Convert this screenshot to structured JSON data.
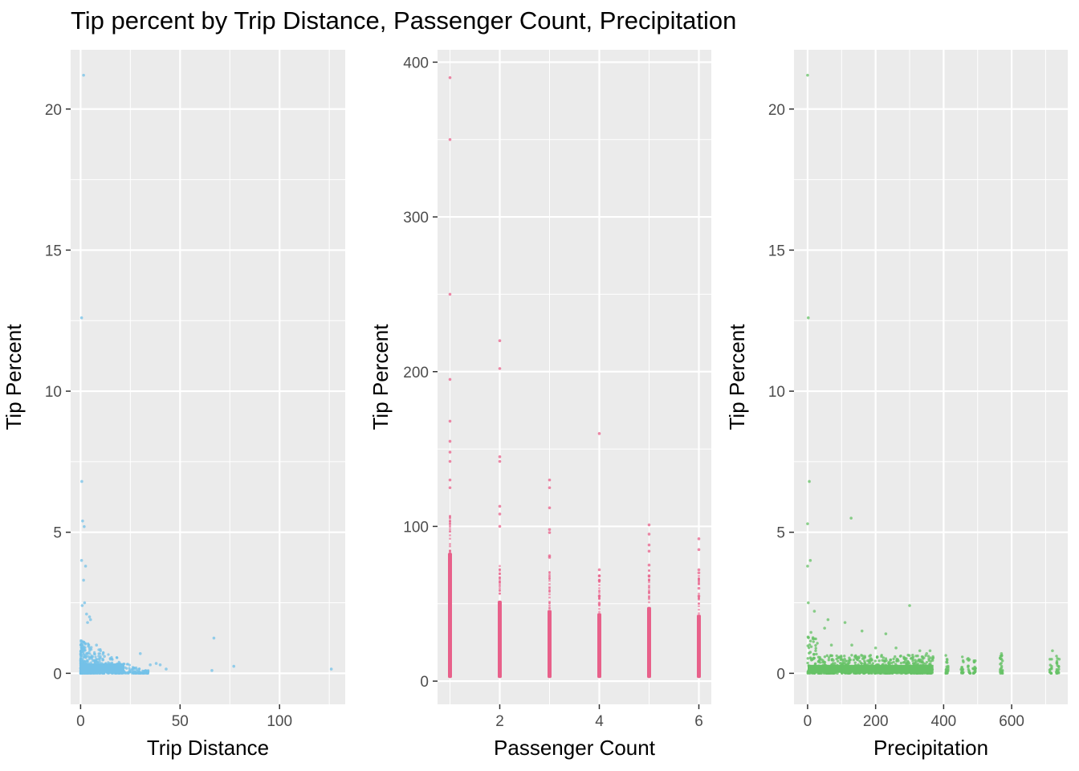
{
  "chart_data": {
    "type": "scatter",
    "title": "Tip percent by Trip Distance, Passenger Count, Precipitation",
    "panels": [
      {
        "xlabel": "Trip Distance",
        "ylabel": "Tip Percent",
        "color": "#74C1E8",
        "xlim": [
          -5,
          133
        ],
        "ylim": [
          -1.1,
          22.1
        ],
        "xticks": [
          0,
          50,
          100
        ],
        "yticks": [
          0,
          5,
          10,
          15,
          20
        ],
        "points": [
          [
            1.5,
            21.2
          ],
          [
            0.5,
            12.6
          ],
          [
            0.6,
            6.8
          ],
          [
            1.0,
            5.4
          ],
          [
            1.8,
            5.2
          ],
          [
            0.5,
            4.0
          ],
          [
            2.5,
            3.8
          ],
          [
            1.5,
            3.3
          ],
          [
            0.8,
            2.4
          ],
          [
            2.0,
            2.5
          ],
          [
            3.0,
            2.1
          ],
          [
            4.5,
            2.0
          ],
          [
            5.0,
            1.9
          ],
          [
            3.5,
            1.8
          ],
          [
            8.0,
            1.0
          ],
          [
            10.0,
            0.8
          ],
          [
            12.0,
            0.6
          ],
          [
            15.0,
            0.5
          ],
          [
            20.0,
            0.3
          ],
          [
            30.0,
            0.7
          ],
          [
            35.0,
            0.3
          ],
          [
            38.0,
            0.35
          ],
          [
            40.0,
            0.3
          ],
          [
            43.0,
            0.15
          ],
          [
            67.0,
            1.25
          ],
          [
            66.0,
            0.1
          ],
          [
            77.0,
            0.25
          ],
          [
            126.0,
            0.15
          ]
        ]
      },
      {
        "xlabel": "Passenger Count",
        "ylabel": "Tip Percent",
        "color": "#E8608A",
        "xlim": [
          0.75,
          6.25
        ],
        "ylim": [
          -15,
          408
        ],
        "xticks": [
          2,
          4,
          6
        ],
        "yticks": [
          0,
          100,
          200,
          300,
          400
        ],
        "points": [
          [
            1,
            390
          ],
          [
            1,
            350
          ],
          [
            1,
            250
          ],
          [
            1,
            195
          ],
          [
            1,
            168
          ],
          [
            1,
            155
          ],
          [
            1,
            148
          ],
          [
            1,
            142
          ],
          [
            1,
            130
          ],
          [
            1,
            125
          ],
          [
            2,
            220
          ],
          [
            2,
            202
          ],
          [
            2,
            145
          ],
          [
            2,
            142
          ],
          [
            2,
            113
          ],
          [
            2,
            108
          ],
          [
            2,
            100
          ],
          [
            3,
            130
          ],
          [
            3,
            125
          ],
          [
            3,
            112
          ],
          [
            3,
            98
          ],
          [
            3,
            96
          ],
          [
            3,
            81
          ],
          [
            3,
            80
          ],
          [
            4,
            160
          ],
          [
            4,
            72
          ],
          [
            4,
            68
          ],
          [
            4,
            65
          ],
          [
            4,
            55
          ],
          [
            4,
            50
          ],
          [
            5,
            101
          ],
          [
            5,
            95
          ],
          [
            5,
            88
          ],
          [
            5,
            84
          ],
          [
            5,
            75
          ],
          [
            5,
            68
          ],
          [
            6,
            92
          ],
          [
            6,
            85
          ],
          [
            6,
            72
          ],
          [
            6,
            70
          ],
          [
            6,
            60
          ],
          [
            6,
            55
          ]
        ]
      },
      {
        "xlabel": "Precipitation",
        "ylabel": "Tip Percent",
        "color": "#66C266",
        "xlim": [
          -40,
          765
        ],
        "ylim": [
          -1.1,
          22.1
        ],
        "xticks": [
          0,
          200,
          400,
          600
        ],
        "yticks": [
          0,
          5,
          10,
          15,
          20
        ],
        "points": [
          [
            0,
            21.2
          ],
          [
            2,
            12.6
          ],
          [
            5,
            6.8
          ],
          [
            0,
            5.3
          ],
          [
            128,
            5.5
          ],
          [
            8,
            4.0
          ],
          [
            0,
            3.8
          ],
          [
            300,
            2.4
          ],
          [
            2,
            2.5
          ],
          [
            20,
            2.2
          ],
          [
            60,
            1.9
          ],
          [
            110,
            1.8
          ],
          [
            50,
            1.6
          ],
          [
            160,
            1.5
          ],
          [
            230,
            1.4
          ],
          [
            10,
            1.45
          ],
          [
            70,
            1.0
          ],
          [
            130,
            1.0
          ],
          [
            200,
            0.9
          ],
          [
            260,
            0.9
          ],
          [
            330,
            0.8
          ],
          [
            350,
            0.7
          ],
          [
            360,
            0.8
          ],
          [
            570,
            0.7
          ],
          [
            720,
            0.8
          ],
          [
            410,
            0.5
          ],
          [
            470,
            0.5
          ],
          [
            490,
            0.4
          ],
          [
            740,
            0.5
          ]
        ]
      }
    ]
  }
}
